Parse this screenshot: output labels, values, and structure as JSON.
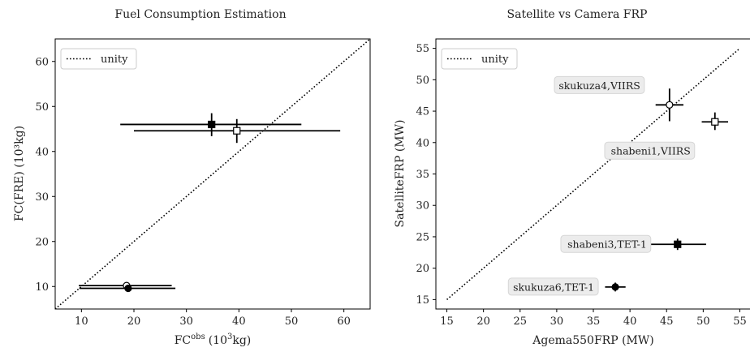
{
  "chart_data": [
    {
      "type": "scatter",
      "title": "Fuel Consumption Estimation",
      "xlabel": "FC",
      "xlabel_sup": "obs",
      "xlabel_unit_base": "(10",
      "xlabel_unit_sup": "3",
      "xlabel_unit_tail": "kg)",
      "ylabel": "FC(FRE) (10³kg)",
      "xlim": [
        5,
        65
      ],
      "ylim": [
        5,
        65
      ],
      "xticks": [
        10,
        20,
        30,
        40,
        50,
        60
      ],
      "yticks": [
        10,
        20,
        30,
        40,
        50,
        60
      ],
      "legend": {
        "label": "unity",
        "placement": "top-left"
      },
      "unity_line": [
        [
          5,
          5
        ],
        [
          65,
          65
        ]
      ],
      "points": [
        {
          "x": 34.8,
          "y": 46.0,
          "xerr": [
            17.4,
            51.9
          ],
          "yerr": [
            43.4,
            48.5
          ],
          "marker": "square-filled"
        },
        {
          "x": 39.6,
          "y": 44.6,
          "xerr": [
            20.0,
            59.3
          ],
          "yerr": [
            41.9,
            47.2
          ],
          "marker": "square-open"
        },
        {
          "x": 18.6,
          "y": 10.2,
          "xerr": [
            9.5,
            27.2
          ],
          "yerr": null,
          "marker": "circle-open"
        },
        {
          "x": 18.9,
          "y": 9.6,
          "xerr": [
            9.6,
            27.9
          ],
          "yerr": null,
          "marker": "circle-filled"
        }
      ]
    },
    {
      "type": "scatter",
      "title": "Satellite vs Camera FRP",
      "xlabel": "Agema550FRP (MW)",
      "ylabel": "SatelliteFRP (MW)",
      "xlim": [
        13.5,
        56.5
      ],
      "ylim": [
        13.5,
        56.5
      ],
      "xticks": [
        15,
        20,
        25,
        30,
        35,
        40,
        45,
        50,
        55
      ],
      "yticks": [
        15,
        20,
        25,
        30,
        35,
        40,
        45,
        50,
        55
      ],
      "legend": {
        "label": "unity",
        "placement": "top-left"
      },
      "unity_line": [
        [
          15,
          15
        ],
        [
          55,
          55
        ]
      ],
      "points": [
        {
          "x": 45.4,
          "y": 46.0,
          "xerr": [
            43.5,
            47.3
          ],
          "yerr": [
            43.4,
            48.6
          ],
          "marker": "circle-open",
          "label": "skukuza4,VIIRS"
        },
        {
          "x": 51.6,
          "y": 43.3,
          "xerr": [
            49.8,
            53.4
          ],
          "yerr": [
            42.0,
            44.8
          ],
          "marker": "square-open",
          "label": "shabeni1,VIIRS"
        },
        {
          "x": 46.5,
          "y": 23.8,
          "xerr": [
            42.6,
            50.4
          ],
          "yerr": [
            22.9,
            24.7
          ],
          "marker": "square-filled",
          "label": "shabeni3,TET-1"
        },
        {
          "x": 38.0,
          "y": 17.0,
          "xerr": [
            36.6,
            39.4
          ],
          "yerr": [
            16.3,
            17.7
          ],
          "marker": "circle-filled",
          "label": "skukuza6,TET-1"
        }
      ]
    }
  ]
}
